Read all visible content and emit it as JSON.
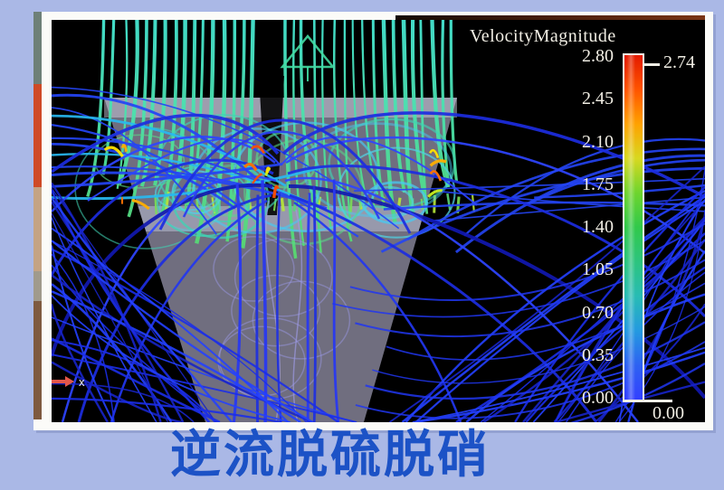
{
  "page": {
    "background": "#aab8e6"
  },
  "figure": {
    "legend": {
      "title": "VelocityMagnitude",
      "ticks": [
        "2.80",
        "2.45",
        "2.10",
        "1.75",
        "1.40",
        "1.05",
        "0.70",
        "0.35",
        "0.00"
      ],
      "max_marker": "2.74",
      "min_marker": "0.00"
    },
    "axis_marker": {
      "label": "x"
    }
  },
  "caption": {
    "text": "逆流脱硫脱硝",
    "color": "#1c52c6"
  },
  "chart_data": {
    "type": "heatmap",
    "subtype": "cfd-streamline-visualization",
    "title": "VelocityMagnitude",
    "colorbar": {
      "label": "VelocityMagnitude",
      "orientation": "vertical",
      "range": [
        0.0,
        2.8
      ],
      "tick_values": [
        2.8,
        2.45,
        2.1,
        1.75,
        1.4,
        1.05,
        0.7,
        0.35,
        0.0
      ],
      "data_max_marker": 2.74,
      "data_min_marker": 0.0,
      "colormap_top_to_bottom": [
        "#e31a00",
        "#ff5400",
        "#ffa200",
        "#d8d820",
        "#6ed52e",
        "#31c94b",
        "#2cc47e",
        "#28bcb4",
        "#249ae0",
        "#2e62f2",
        "#3340ff"
      ]
    },
    "annotations": [
      "x"
    ],
    "caption": "逆流脱硫脱硝"
  }
}
